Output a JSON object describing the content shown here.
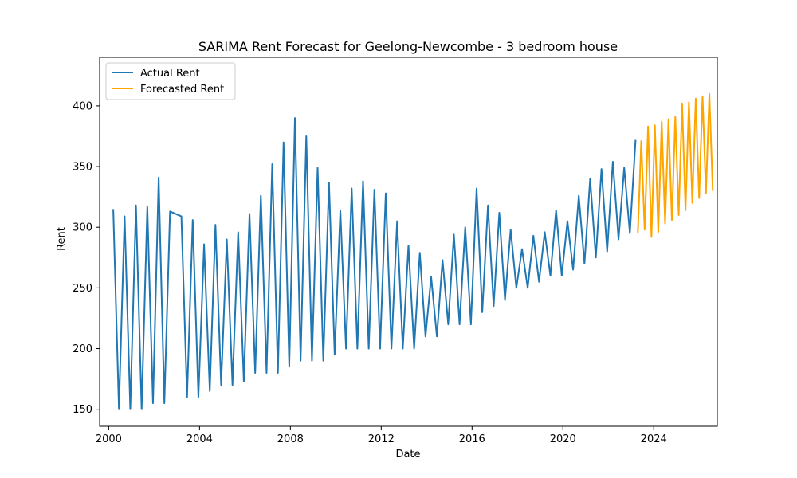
{
  "chart_data": {
    "type": "line",
    "title": "SARIMA Rent Forecast for Geelong-Newcombe - 3 bedroom house",
    "xlabel": "Date",
    "ylabel": "Rent",
    "xlim": [
      1999.6,
      2026.8
    ],
    "ylim": [
      136,
      440
    ],
    "x_ticks": [
      2000,
      2004,
      2008,
      2012,
      2016,
      2020,
      2024
    ],
    "y_ticks": [
      150,
      200,
      250,
      300,
      350,
      400
    ],
    "grid": false,
    "legend_position": "top-left",
    "series": [
      {
        "name": "Actual Rent",
        "color": "#1f77b4",
        "x": [
          2000.2,
          2000.45,
          2000.7,
          2000.95,
          2001.2,
          2001.45,
          2001.7,
          2001.95,
          2002.2,
          2002.45,
          2002.7,
          2003.2,
          2003.45,
          2003.7,
          2003.95,
          2004.2,
          2004.45,
          2004.7,
          2004.95,
          2005.2,
          2005.45,
          2005.7,
          2005.95,
          2006.2,
          2006.45,
          2006.7,
          2006.95,
          2007.2,
          2007.45,
          2007.7,
          2007.95,
          2008.2,
          2008.45,
          2008.7,
          2008.95,
          2009.2,
          2009.45,
          2009.7,
          2009.95,
          2010.2,
          2010.45,
          2010.7,
          2010.95,
          2011.2,
          2011.45,
          2011.7,
          2011.95,
          2012.2,
          2012.45,
          2012.7,
          2012.95,
          2013.2,
          2013.45,
          2013.7,
          2013.95,
          2014.2,
          2014.45,
          2014.7,
          2014.95,
          2015.2,
          2015.45,
          2015.7,
          2015.95,
          2016.2,
          2016.45,
          2016.7,
          2016.95,
          2017.2,
          2017.45,
          2017.7,
          2017.95,
          2018.2,
          2018.45,
          2018.7,
          2018.95,
          2019.2,
          2019.45,
          2019.7,
          2019.95,
          2020.2,
          2020.45,
          2020.7,
          2020.95,
          2021.2,
          2021.45,
          2021.7,
          2021.95,
          2022.2,
          2022.45,
          2022.7,
          2022.95,
          2023.2
        ],
        "values": [
          315,
          150,
          309,
          150,
          318,
          150,
          317,
          155,
          341,
          155,
          313,
          309,
          160,
          306,
          160,
          286,
          165,
          302,
          170,
          290,
          170,
          296,
          173,
          311,
          180,
          326,
          180,
          352,
          180,
          370,
          185,
          390,
          190,
          375,
          190,
          349,
          190,
          337,
          195,
          314,
          200,
          332,
          200,
          338,
          200,
          331,
          200,
          328,
          200,
          305,
          200,
          285,
          200,
          279,
          210,
          259,
          210,
          273,
          220,
          294,
          220,
          300,
          220,
          332,
          230,
          318,
          235,
          312,
          240,
          298,
          250,
          282,
          250,
          293,
          255,
          296,
          260,
          314,
          260,
          305,
          265,
          326,
          270,
          340,
          275,
          348,
          280,
          354,
          290,
          349,
          295,
          372
        ]
      },
      {
        "name": "Forecasted Rent",
        "color": "#ffa500",
        "x": [
          2023.3,
          2023.45,
          2023.6,
          2023.75,
          2023.9,
          2024.05,
          2024.2,
          2024.35,
          2024.5,
          2024.65,
          2024.8,
          2024.95,
          2025.1,
          2025.25,
          2025.4,
          2025.55,
          2025.7,
          2025.85,
          2026.0,
          2026.15,
          2026.3,
          2026.45,
          2026.6
        ],
        "values": [
          295,
          371,
          298,
          383,
          292,
          384,
          296,
          387,
          303,
          389,
          306,
          391,
          310,
          402,
          314,
          403,
          320,
          406,
          324,
          408,
          328,
          410,
          330
        ]
      }
    ]
  }
}
